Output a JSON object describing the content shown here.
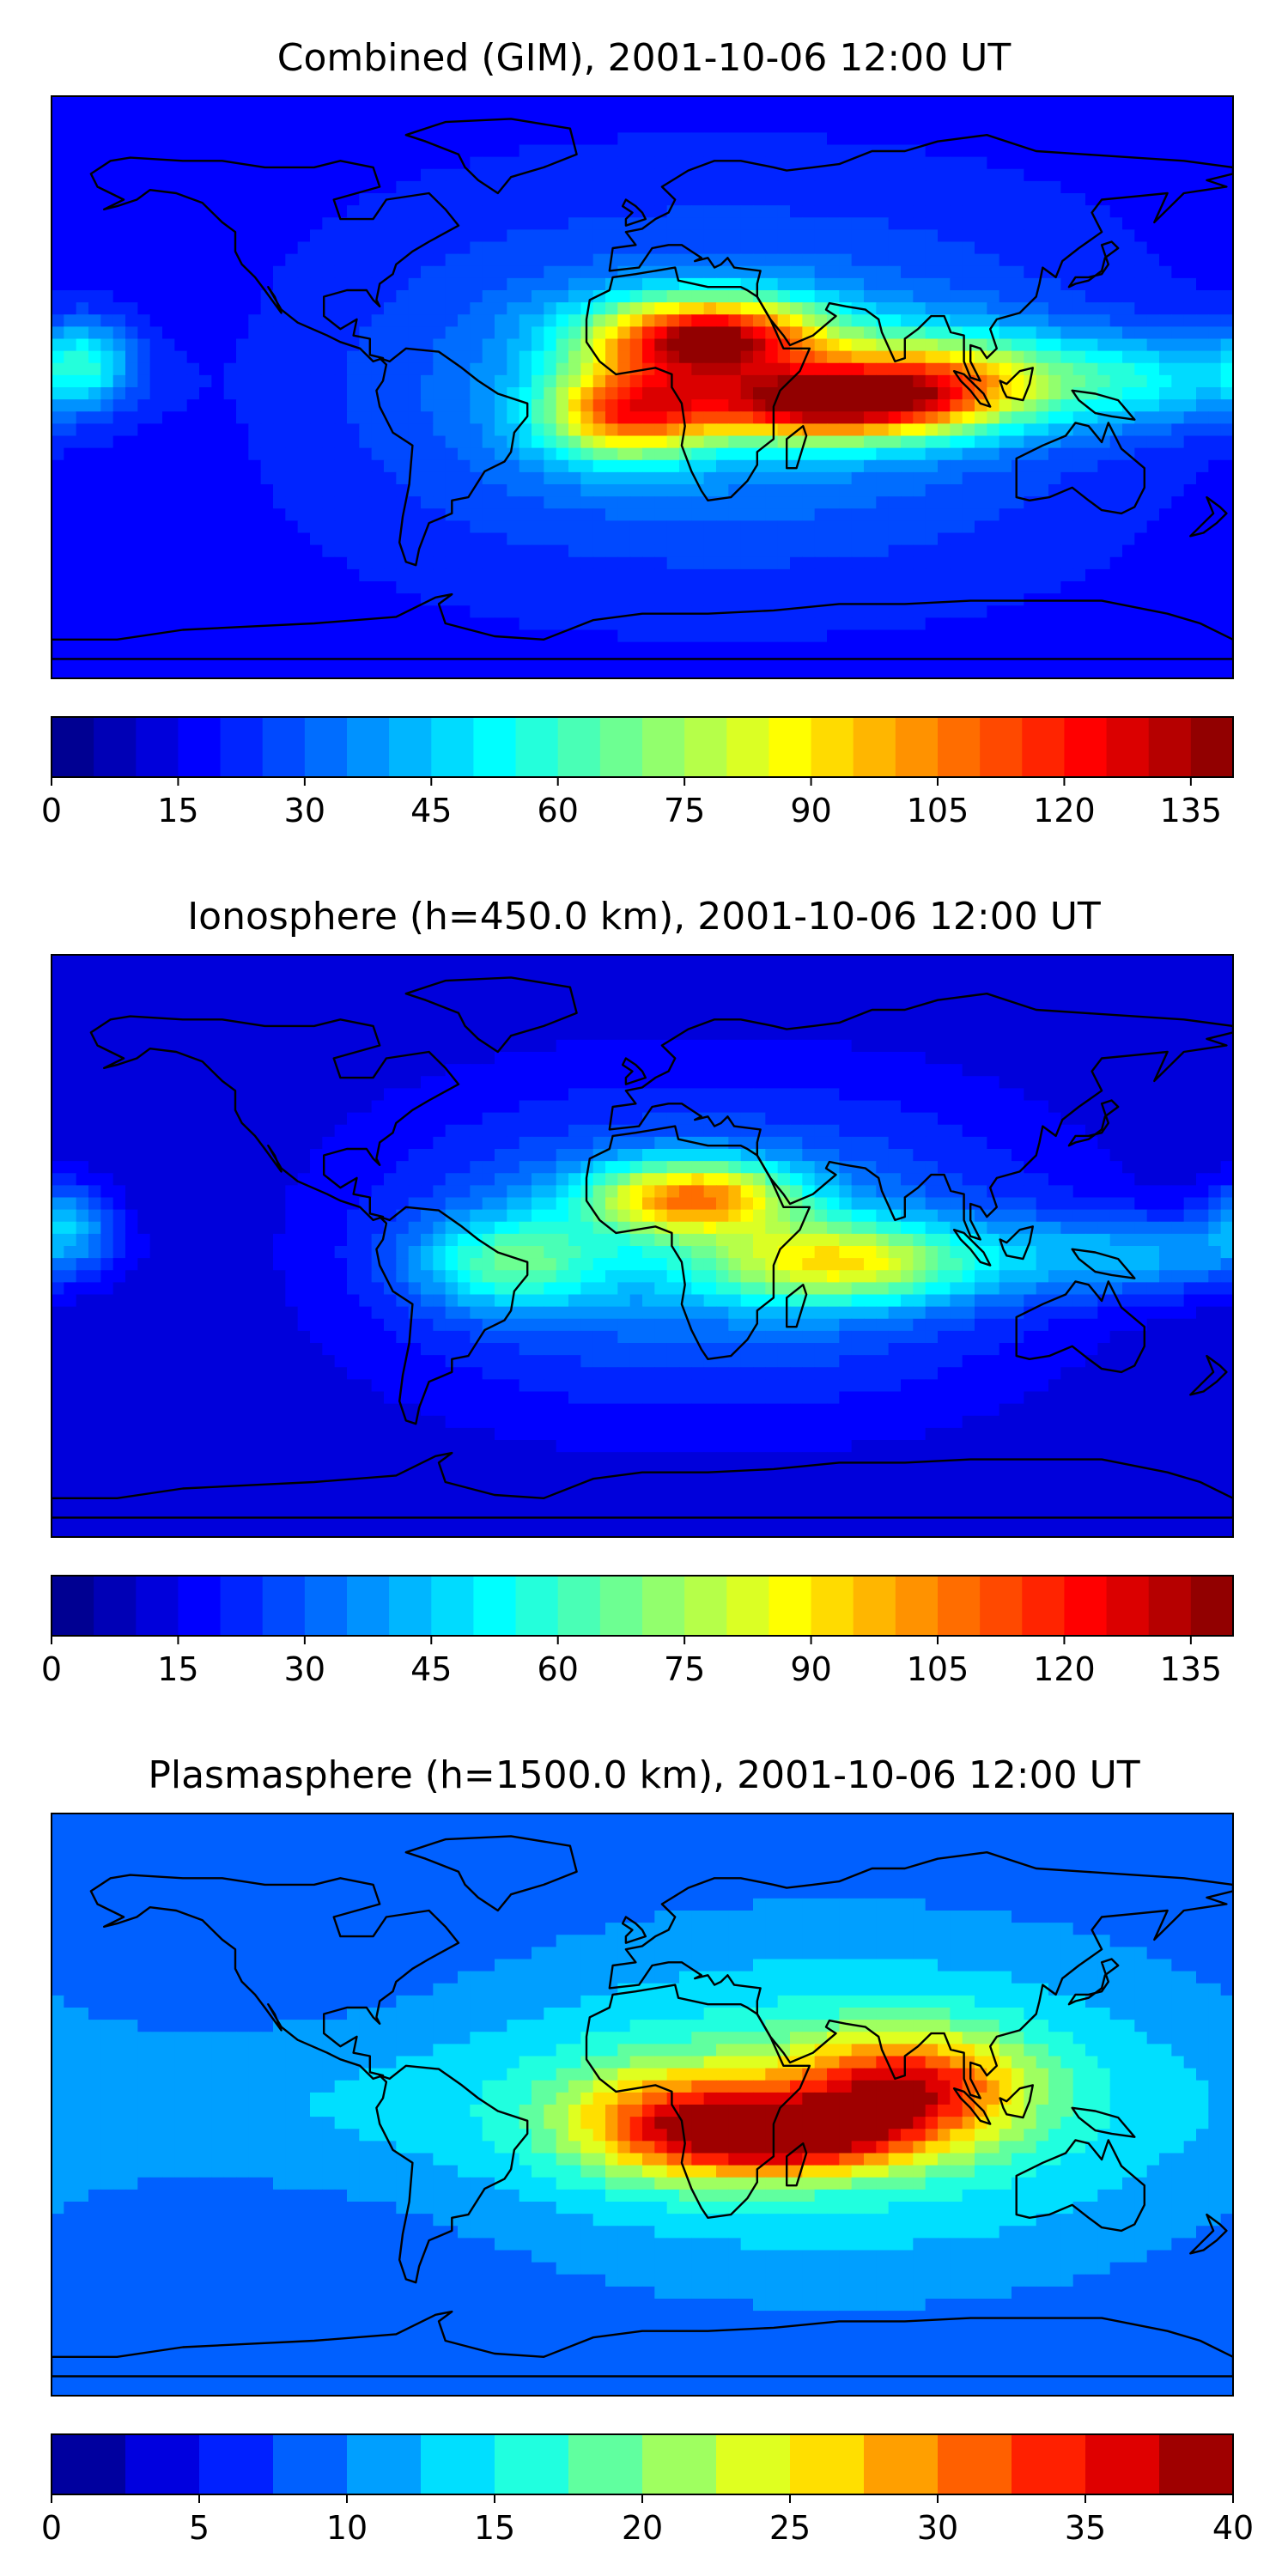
{
  "chart_data": [
    {
      "type": "heatmap",
      "title": "Combined (GIM), 2001-10-06 12:00 UT",
      "colorbar": {
        "vmin": 0,
        "vmax": 140,
        "levels": 28,
        "ticks": [
          0,
          15,
          30,
          45,
          60,
          75,
          90,
          105,
          120,
          135
        ],
        "tick_labels": [
          "0",
          "15",
          "30",
          "45",
          "60",
          "75",
          "90",
          "105",
          "120",
          "135"
        ],
        "colormap": "jet"
      },
      "features": [
        {
          "lon": 20,
          "lat": 15,
          "value": 125,
          "sx": 25,
          "sy": 9
        },
        {
          "lon": 55,
          "lat": -5,
          "value": 120,
          "sx": 30,
          "sy": 8
        },
        {
          "lon": -5,
          "lat": -8,
          "value": 95,
          "sx": 18,
          "sy": 10
        },
        {
          "lon": 90,
          "lat": 3,
          "value": 80,
          "sx": 25,
          "sy": 10
        },
        {
          "lon": 150,
          "lat": 2,
          "value": 55,
          "sx": 30,
          "sy": 10
        },
        {
          "lon": -170,
          "lat": 8,
          "value": 55,
          "sx": 10,
          "sy": 9
        }
      ],
      "base": {
        "peak_lon": 25,
        "peak_value": 42,
        "floor_value": 18
      }
    },
    {
      "type": "heatmap",
      "title": "Ionosphere  (h=450.0 km), 2001-10-06 12:00 UT",
      "colorbar": {
        "vmin": 0,
        "vmax": 140,
        "levels": 28,
        "ticks": [
          0,
          15,
          30,
          45,
          60,
          75,
          90,
          105,
          120,
          135
        ],
        "tick_labels": [
          "0",
          "15",
          "30",
          "45",
          "60",
          "75",
          "90",
          "105",
          "120",
          "135"
        ],
        "colormap": "jet"
      },
      "features": [
        {
          "lon": 15,
          "lat": 15,
          "value": 95,
          "sx": 22,
          "sy": 8
        },
        {
          "lon": 60,
          "lat": -5,
          "value": 80,
          "sx": 30,
          "sy": 9
        },
        {
          "lon": -40,
          "lat": -5,
          "value": 60,
          "sx": 20,
          "sy": 10
        },
        {
          "lon": 150,
          "lat": -3,
          "value": 50,
          "sx": 30,
          "sy": 9
        },
        {
          "lon": -175,
          "lat": 8,
          "value": 50,
          "sx": 10,
          "sy": 9
        }
      ],
      "base": {
        "peak_lon": 20,
        "peak_value": 38,
        "floor_value": 10
      }
    },
    {
      "type": "heatmap",
      "title": "Plasmasphere (h=1500.0 km), 2001-10-06 12:00 UT",
      "colorbar": {
        "vmin": 0,
        "vmax": 40,
        "levels": 16,
        "ticks": [
          0,
          5,
          10,
          15,
          20,
          25,
          30,
          35,
          40
        ],
        "tick_labels": [
          "0",
          "5",
          "10",
          "15",
          "20",
          "25",
          "30",
          "35",
          "40"
        ],
        "colormap": "jet"
      },
      "features": [
        {
          "lon": 80,
          "lat": 5,
          "value": 31,
          "sx": 25,
          "sy": 12
        },
        {
          "lon": 45,
          "lat": -10,
          "value": 30,
          "sx": 25,
          "sy": 8
        },
        {
          "lon": 10,
          "lat": -5,
          "value": 27,
          "sx": 25,
          "sy": 12
        },
        {
          "lon": -100,
          "lat": 0,
          "value": 15,
          "sx": 60,
          "sy": 20
        }
      ],
      "base": {
        "peak_lon": 60,
        "peak_value": 18,
        "floor_value": 8
      }
    }
  ]
}
